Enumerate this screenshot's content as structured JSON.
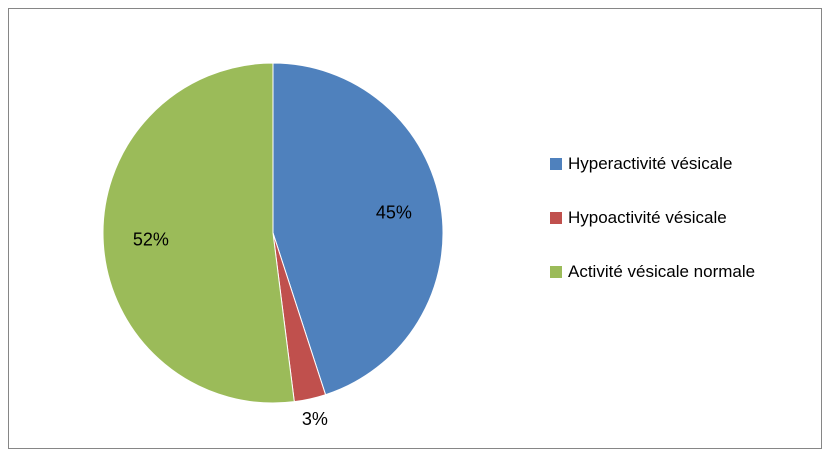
{
  "chart_data": {
    "type": "pie",
    "categories": [
      "Hyperactivité vésicale",
      "Hypoactivité vésicale",
      "Activité vésicale normale"
    ],
    "values": [
      45,
      3,
      52
    ],
    "value_labels": [
      "45%",
      "3%",
      "52%"
    ],
    "colors": [
      "#4f81bd",
      "#c0504d",
      "#9bbb59"
    ],
    "legend": "right"
  }
}
